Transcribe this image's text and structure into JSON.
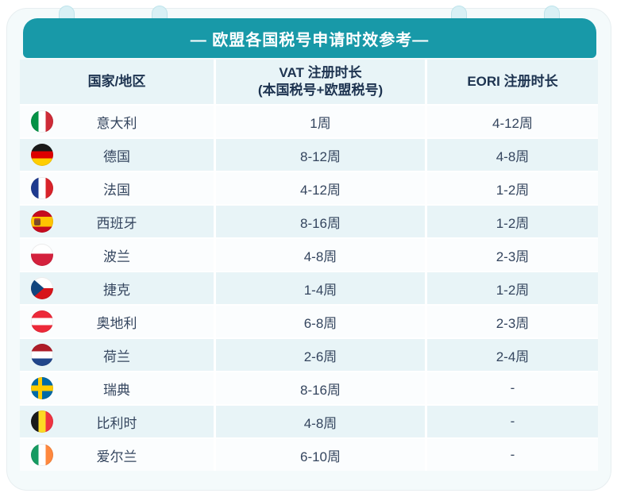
{
  "title": "— 欧盟各国税号申请时效参考—",
  "columns": {
    "country": "国家/地区",
    "vat_line1": "VAT 注册时长",
    "vat_line2": "(本国税号+欧盟税号)",
    "eori": "EORI 注册时长"
  },
  "rows": [
    {
      "flag": "italy",
      "country": "意大利",
      "vat": "1周",
      "eori": "4-12周"
    },
    {
      "flag": "germany",
      "country": "德国",
      "vat": "8-12周",
      "eori": "4-8周"
    },
    {
      "flag": "france",
      "country": "法国",
      "vat": "4-12周",
      "eori": "1-2周"
    },
    {
      "flag": "spain",
      "country": "西班牙",
      "vat": "8-16周",
      "eori": "1-2周"
    },
    {
      "flag": "poland",
      "country": "波兰",
      "vat": "4-8周",
      "eori": "2-3周"
    },
    {
      "flag": "czech",
      "country": "捷克",
      "vat": "1-4周",
      "eori": "1-2周"
    },
    {
      "flag": "austria",
      "country": "奥地利",
      "vat": "6-8周",
      "eori": "2-3周"
    },
    {
      "flag": "netherlands",
      "country": "荷兰",
      "vat": "2-6周",
      "eori": "2-4周"
    },
    {
      "flag": "sweden",
      "country": "瑞典",
      "vat": "8-16周",
      "eori": "-"
    },
    {
      "flag": "belgium",
      "country": "比利时",
      "vat": "4-8周",
      "eori": "-"
    },
    {
      "flag": "ireland",
      "country": "爱尔兰",
      "vat": "6-10周",
      "eori": "-"
    }
  ],
  "colors": {
    "teal": "#1899a8",
    "card_bg": "#f4fafb",
    "row_tint": "#e8f4f7",
    "row_white": "#fbfdfe",
    "header_text": "#1d3350",
    "cell_text": "#34455e",
    "ring_pill": "#d9f0f5",
    "ring_blob": "#8ed2de"
  }
}
